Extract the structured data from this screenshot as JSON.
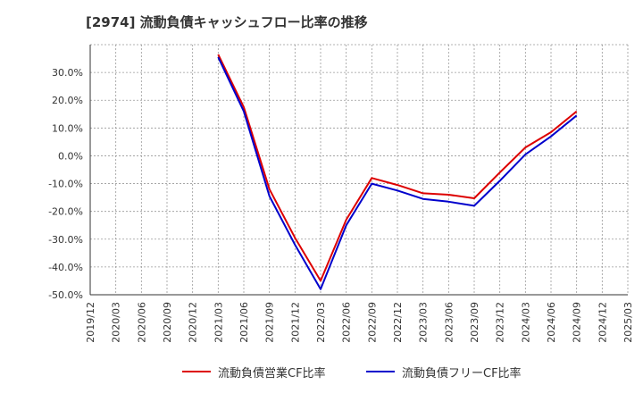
{
  "title": "[2974]  流動負債キャッシュフロー比率の推移",
  "chart_data": {
    "type": "line",
    "title": "[2974]  流動負債キャッシュフロー比率の推移",
    "xlabel": "",
    "ylabel": "",
    "ylim": [
      -50,
      40
    ],
    "yticks": [
      30,
      20,
      10,
      0,
      -10,
      -20,
      -30,
      -40,
      -50
    ],
    "ytick_labels": [
      "30.0%",
      "20.0%",
      "10.0%",
      "0.0%",
      "-10.0%",
      "-20.0%",
      "-30.0%",
      "-40.0%",
      "-50.0%"
    ],
    "xticks": [
      "2019/12",
      "2020/03",
      "2020/06",
      "2020/09",
      "2020/12",
      "2021/03",
      "2021/06",
      "2021/09",
      "2021/12",
      "2022/03",
      "2022/06",
      "2022/09",
      "2022/12",
      "2023/03",
      "2023/06",
      "2023/09",
      "2023/12",
      "2024/03",
      "2024/06",
      "2024/09",
      "2024/12",
      "2025/03"
    ],
    "grid": true,
    "legend_position": "bottom",
    "series": [
      {
        "name": "流動負債営業CF比率",
        "color": "#dd0000",
        "x": [
          "2021/03",
          "2021/06",
          "2021/09",
          "2021/12",
          "2022/03",
          "2022/06",
          "2022/09",
          "2022/12",
          "2023/03",
          "2023/06",
          "2023/09",
          "2023/12",
          "2024/03",
          "2024/06",
          "2024/09"
        ],
        "values": [
          36.5,
          17.5,
          -12.0,
          -29.5,
          -45.0,
          -23.0,
          -8.0,
          -10.5,
          -13.5,
          -14.0,
          -15.3,
          -6.0,
          3.0,
          8.5,
          16.0
        ]
      },
      {
        "name": "流動負債フリーCF比率",
        "color": "#0000cc",
        "x": [
          "2021/03",
          "2021/06",
          "2021/09",
          "2021/12",
          "2022/03",
          "2022/06",
          "2022/09",
          "2022/12",
          "2023/03",
          "2023/06",
          "2023/09",
          "2023/12",
          "2024/03",
          "2024/06",
          "2024/09"
        ],
        "values": [
          35.5,
          16.0,
          -14.5,
          -32.0,
          -48.0,
          -25.0,
          -10.0,
          -12.5,
          -15.5,
          -16.5,
          -18.0,
          -9.0,
          0.5,
          7.0,
          14.5
        ]
      }
    ]
  }
}
